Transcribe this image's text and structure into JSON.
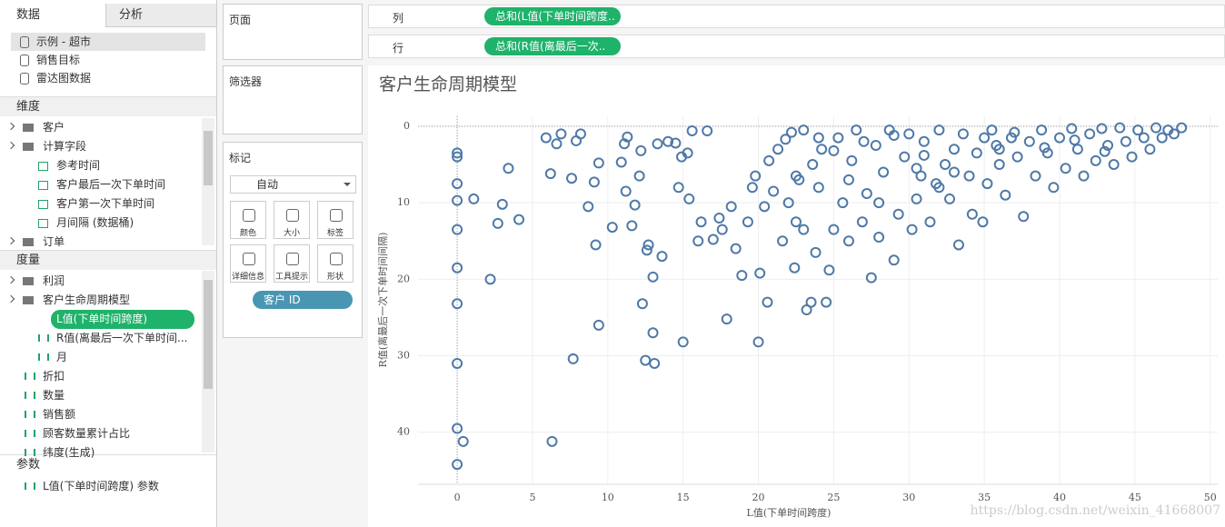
{
  "sidebar": {
    "tabs": [
      "数据",
      "分析"
    ],
    "sources": [
      "示例 - 超市",
      "销售目标",
      "雷达图数据"
    ],
    "dimensions_header": "维度",
    "dimensions": [
      "客户",
      "计算字段",
      "参考时间",
      "客户最后一次下单时间",
      "客户第一次下单时间",
      "月间隔 (数据桶)",
      "订单"
    ],
    "measures_header": "度量",
    "measures": [
      "利润",
      "客户生命周期模型",
      "L值(下单时间跨度)",
      "R值(离最后一次下单时间...",
      "月",
      "折扣",
      "数量",
      "销售额",
      "顾客数量累计占比",
      "纬度(生成)"
    ],
    "params_header": "参数",
    "params": [
      "L值(下单时间跨度) 参数"
    ]
  },
  "cards": {
    "pages": "页面",
    "filters": "筛选器",
    "marks": "标记",
    "mark_type": "自动",
    "mark_buttons": [
      "颜色",
      "大小",
      "标签",
      "详细信息",
      "工具提示",
      "形状"
    ],
    "detail_pill": "客户 ID"
  },
  "shelves": {
    "columns_label": "列",
    "columns_pill": "总和(L值(下单时间跨度..",
    "rows_label": "行",
    "rows_pill": "总和(R值(离最后一次.."
  },
  "watermark": "https://blog.csdn.net/weixin_41668007",
  "chart_data": {
    "type": "scatter",
    "title": "客户生命周期模型",
    "x_label": "L值(下单时间跨度)",
    "y_label": "R值(离最后一次下单时间间隔)",
    "xlim": [
      -2.6,
      50.5
    ],
    "ylim": [
      -1.3,
      46.8
    ],
    "y_inverted": true,
    "xticks": [
      0,
      5,
      10,
      15,
      20,
      25,
      30,
      35,
      40,
      45,
      50
    ],
    "yticks": [
      0,
      10,
      20,
      30,
      40
    ],
    "grid": true,
    "color": "#4e79a7",
    "x": [
      0,
      0,
      0,
      0,
      0,
      0,
      0,
      0,
      0,
      0,
      0.4,
      1.1,
      2.2,
      2.7,
      3,
      3.4,
      4.1,
      5.9,
      6.2,
      6.3,
      6.6,
      6.9,
      7.6,
      7.7,
      7.9,
      8.2,
      8.7,
      9.1,
      9.2,
      9.4,
      9.4,
      10.3,
      10.9,
      11.1,
      11.2,
      11.3,
      11.6,
      11.8,
      12.1,
      12.2,
      12.5,
      12.3,
      12.6,
      12.7,
      13,
      13,
      13.1,
      13.3,
      13.6,
      14,
      14.5,
      14.7,
      14.9,
      15,
      15.3,
      15.4,
      15.6,
      16,
      16.2,
      16.6,
      17,
      17.4,
      17.6,
      17.9,
      18.2,
      18.5,
      18.9,
      19.3,
      19.6,
      19.8,
      20,
      20.1,
      20.4,
      20.6,
      20.7,
      21,
      21.3,
      21.6,
      21.8,
      22,
      22.2,
      22.4,
      22.5,
      22.7,
      23,
      23.2,
      23.5,
      23.6,
      23.8,
      24,
      24.2,
      24.5,
      24.7,
      25,
      25.3,
      25.6,
      26,
      26.2,
      26.5,
      26.9,
      27.2,
      27.5,
      27.8,
      28,
      28.3,
      28.7,
      29,
      29.3,
      29.7,
      30,
      30.2,
      30.5,
      30.8,
      31,
      31.4,
      31.8,
      32,
      32.4,
      32.7,
      33,
      33.3,
      33.6,
      34,
      34.2,
      34.5,
      34.9,
      35.2,
      35.5,
      35.8,
      36,
      36.4,
      36.8,
      37.2,
      37.6,
      38,
      38.4,
      38.8,
      39.2,
      39.6,
      40,
      40.4,
      40.8,
      41.2,
      41.6,
      42,
      42.4,
      42.8,
      43.2,
      43.6,
      44,
      44.4,
      44.8,
      45.2,
      45.6,
      46,
      46.4,
      46.8,
      47.2,
      47.6,
      48.1,
      23,
      25,
      27,
      29,
      31,
      33,
      35,
      37,
      39,
      41,
      43,
      22.5,
      28,
      26,
      32,
      36,
      24,
      30.5
    ],
    "values": [
      3.5,
      4,
      7.5,
      9.7,
      13.5,
      18.5,
      23.2,
      31,
      39.5,
      44.2,
      41.2,
      9.5,
      20,
      12.7,
      10.2,
      5.5,
      12.2,
      1.5,
      6.2,
      41.2,
      2.3,
      1,
      6.8,
      30.4,
      1.9,
      1,
      10.5,
      7.3,
      15.5,
      4.8,
      26,
      13.2,
      4.7,
      2.3,
      8.5,
      1.4,
      13,
      10.3,
      6.5,
      3.2,
      30.6,
      23.2,
      16.2,
      15.5,
      27,
      19.7,
      31,
      2.3,
      17,
      2,
      2.2,
      8,
      4,
      28.2,
      3.5,
      9.5,
      0.6,
      15,
      12.5,
      0.6,
      14.8,
      12,
      13.5,
      25.2,
      10.5,
      16,
      19.5,
      12.5,
      8,
      6.5,
      28.2,
      19.2,
      10.5,
      23,
      4.5,
      8.5,
      3,
      15,
      1.7,
      10,
      0.8,
      18.5,
      12.5,
      7,
      13.5,
      24,
      23,
      5,
      16.5,
      8,
      3,
      23,
      18.8,
      13.5,
      1.5,
      10,
      15,
      4.5,
      0.5,
      12.5,
      8.8,
      19.8,
      2.5,
      14.5,
      6,
      0.5,
      17.5,
      11.5,
      4,
      1,
      13.5,
      9.5,
      6.5,
      2,
      12.5,
      7.5,
      0.5,
      5,
      9.5,
      3,
      15.5,
      1,
      6.5,
      11.5,
      3.5,
      12.5,
      7.5,
      0.5,
      2.5,
      5,
      9,
      1.5,
      4,
      11.8,
      2,
      6.5,
      0.5,
      3.5,
      8,
      1.5,
      5.5,
      0.3,
      3,
      6.5,
      1,
      4.5,
      0.3,
      2.5,
      5,
      0.2,
      2,
      4,
      0.5,
      1.5,
      3,
      0.2,
      1.5,
      0.5,
      1,
      0.2,
      0.5,
      3.2,
      2,
      1.2,
      3.8,
      6,
      1.5,
      0.8,
      2.8,
      1.8,
      3.3,
      6.5,
      10,
      7,
      8,
      3,
      1.5,
      5.5
    ]
  }
}
